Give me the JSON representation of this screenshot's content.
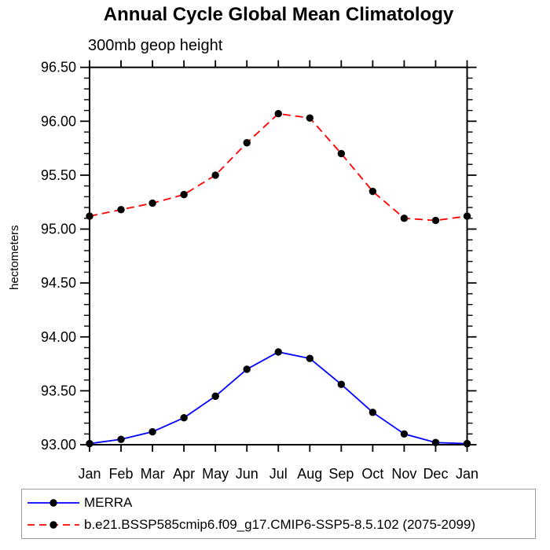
{
  "figure": {
    "title": "Annual Cycle Global Mean Climatology",
    "subtitle": "300mb geop height"
  },
  "chart_data": {
    "type": "line",
    "title": "Annual Cycle Global Mean Climatology",
    "subtitle": "300mb geop height",
    "xlabel": "",
    "ylabel": "hectometers",
    "categories": [
      "Jan",
      "Feb",
      "Mar",
      "Apr",
      "May",
      "Jun",
      "Jul",
      "Aug",
      "Sep",
      "Oct",
      "Nov",
      "Dec",
      "Jan"
    ],
    "ylim": [
      93.0,
      96.5
    ],
    "ytick_major_step": 0.5,
    "ytick_minor_step": 0.1,
    "ytick_labels": [
      "93.00",
      "93.50",
      "94.00",
      "94.50",
      "95.00",
      "95.50",
      "96.00",
      "96.50"
    ],
    "grid": false,
    "legend_position": "bottom-outside-box",
    "series": [
      {
        "name": "MERRA",
        "color": "#0000ff",
        "line_style": "solid",
        "marker": "filled-circle",
        "marker_color": "#000000",
        "values": [
          93.01,
          93.05,
          93.12,
          93.25,
          93.45,
          93.7,
          93.86,
          93.8,
          93.56,
          93.3,
          93.1,
          93.02,
          93.01
        ]
      },
      {
        "name": "b.e21.BSSP585cmip6.f09_g17.CMIP6-SSP5-8.5.102 (2075-2099)",
        "color": "#ff0000",
        "line_style": "dashed",
        "marker": "filled-circle",
        "marker_color": "#000000",
        "values": [
          95.12,
          95.18,
          95.24,
          95.32,
          95.5,
          95.8,
          96.07,
          96.03,
          95.7,
          95.35,
          95.1,
          95.08,
          95.12
        ]
      }
    ]
  },
  "colors": {
    "axis": "#000000",
    "legend_border": "#9c9c9c",
    "background": "#ffffff"
  }
}
